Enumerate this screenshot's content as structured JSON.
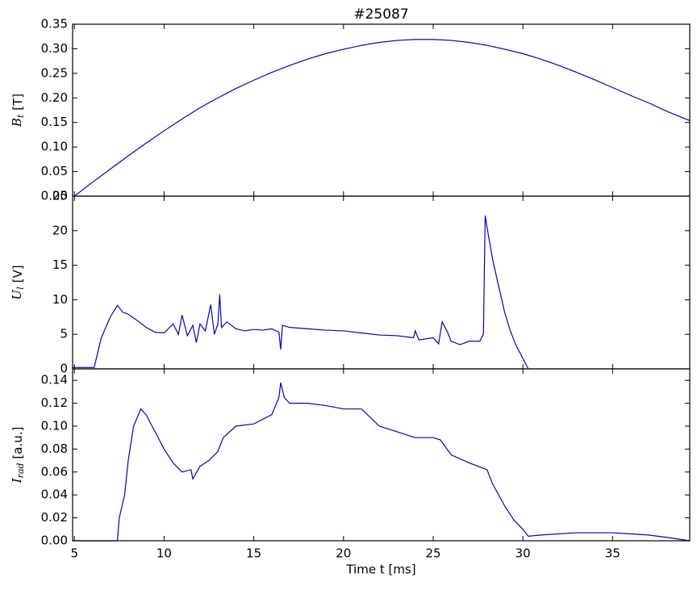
{
  "chart_data": [
    {
      "type": "line",
      "title": "#25087",
      "ylabel": {
        "symbol": "B",
        "sub": "t",
        "unit": "[T]"
      },
      "color": "#0000cc",
      "xlim": [
        4.9,
        39.3
      ],
      "ylim": [
        0,
        0.35
      ],
      "yticks": [
        {
          "value": 0,
          "label": "0.00"
        },
        {
          "value": 0.05,
          "label": "0.05"
        },
        {
          "value": 0.1,
          "label": "0.10"
        },
        {
          "value": 0.15,
          "label": "0.15"
        },
        {
          "value": 0.2,
          "label": "0.20"
        },
        {
          "value": 0.25,
          "label": "0.25"
        },
        {
          "value": 0.3,
          "label": "0.30"
        },
        {
          "value": 0.35,
          "label": "0.35"
        }
      ],
      "x": [
        5,
        6,
        7,
        8,
        9,
        10,
        11,
        12,
        13,
        14,
        15,
        16,
        17,
        18,
        19,
        20,
        21,
        22,
        23,
        24,
        25,
        26,
        27,
        28,
        29,
        30,
        31,
        32,
        33,
        34,
        35,
        36,
        37,
        38,
        39,
        39.3
      ],
      "values": [
        0.0,
        0.028,
        0.055,
        0.082,
        0.108,
        0.133,
        0.157,
        0.18,
        0.2,
        0.219,
        0.236,
        0.252,
        0.266,
        0.279,
        0.29,
        0.299,
        0.307,
        0.313,
        0.317,
        0.319,
        0.319,
        0.317,
        0.313,
        0.307,
        0.299,
        0.29,
        0.279,
        0.266,
        0.252,
        0.237,
        0.221,
        0.205,
        0.19,
        0.173,
        0.158,
        0.154
      ]
    },
    {
      "type": "line",
      "ylabel": {
        "symbol": "U",
        "sub": "l",
        "unit": "[V]"
      },
      "color": "#0000cc",
      "xlim": [
        4.9,
        39.3
      ],
      "ylim": [
        0,
        25
      ],
      "yticks": [
        0,
        5,
        10,
        15,
        20,
        25
      ],
      "x": [
        4.9,
        6.1,
        6.5,
        7.0,
        7.4,
        7.7,
        8.0,
        8.5,
        9.0,
        9.5,
        10.0,
        10.5,
        10.8,
        11.0,
        11.3,
        11.6,
        11.8,
        12.0,
        12.3,
        12.6,
        12.8,
        13.0,
        13.1,
        13.2,
        13.5,
        14.0,
        14.5,
        15.0,
        15.5,
        16.0,
        16.4,
        16.5,
        16.6,
        17.0,
        18.0,
        19.0,
        20.0,
        21.0,
        22.0,
        23.0,
        23.9,
        24.0,
        24.2,
        25.0,
        25.3,
        25.5,
        25.8,
        26.0,
        26.5,
        27.0,
        27.6,
        27.8,
        27.85,
        27.9,
        28.0,
        28.3,
        28.6,
        29.0,
        29.3,
        29.6,
        30.0,
        30.3
      ],
      "values": [
        0.2,
        0.2,
        4.5,
        7.5,
        9.2,
        8.2,
        7.9,
        7.0,
        6.0,
        5.3,
        5.2,
        6.5,
        5.0,
        7.8,
        4.8,
        6.3,
        3.8,
        6.5,
        5.5,
        9.3,
        5.0,
        6.5,
        10.8,
        6.0,
        6.8,
        5.8,
        5.5,
        5.7,
        5.6,
        5.8,
        5.3,
        2.8,
        6.3,
        6.0,
        5.8,
        5.6,
        5.5,
        5.2,
        4.9,
        4.8,
        4.5,
        5.5,
        4.2,
        4.5,
        3.6,
        6.8,
        5.3,
        4.0,
        3.5,
        4.0,
        4.0,
        5.0,
        14.0,
        22.2,
        20.5,
        16.0,
        12.5,
        8.0,
        5.5,
        3.5,
        1.5,
        0.0
      ]
    },
    {
      "type": "line",
      "ylabel": {
        "symbol": "I",
        "sub": "rad",
        "unit": "[a.u.]"
      },
      "xlabel": "Time t [ms]",
      "color": "#0000cc",
      "xlim": [
        4.9,
        39.3
      ],
      "ylim": [
        0,
        0.15
      ],
      "xticks": [
        5,
        10,
        15,
        20,
        25,
        30,
        35
      ],
      "yticks": [
        {
          "value": 0,
          "label": "0.00"
        },
        {
          "value": 0.02,
          "label": "0.02"
        },
        {
          "value": 0.04,
          "label": "0.04"
        },
        {
          "value": 0.06,
          "label": "0.06"
        },
        {
          "value": 0.08,
          "label": "0.08"
        },
        {
          "value": 0.1,
          "label": "0.10"
        },
        {
          "value": 0.12,
          "label": "0.12"
        },
        {
          "value": 0.14,
          "label": "0.14"
        }
      ],
      "x": [
        4.9,
        7.4,
        7.5,
        7.8,
        8.0,
        8.3,
        8.7,
        9.0,
        9.5,
        10.0,
        10.5,
        11.0,
        11.5,
        11.6,
        12.0,
        12.5,
        13.0,
        13.3,
        14.0,
        15.0,
        16.0,
        16.4,
        16.5,
        16.7,
        17.0,
        18.0,
        19.0,
        20.0,
        21.0,
        22.0,
        23.0,
        24.0,
        25.0,
        25.4,
        26.0,
        27.0,
        28.0,
        28.3,
        29.0,
        29.5,
        30.0,
        30.3,
        31.0,
        33.0,
        35.0,
        37.0,
        38.0,
        39.3
      ],
      "values": [
        0.0,
        0.0,
        0.02,
        0.04,
        0.07,
        0.1,
        0.115,
        0.11,
        0.095,
        0.08,
        0.068,
        0.06,
        0.062,
        0.054,
        0.065,
        0.07,
        0.078,
        0.09,
        0.1,
        0.102,
        0.11,
        0.125,
        0.138,
        0.125,
        0.12,
        0.12,
        0.118,
        0.115,
        0.115,
        0.1,
        0.095,
        0.09,
        0.09,
        0.088,
        0.075,
        0.068,
        0.062,
        0.05,
        0.03,
        0.018,
        0.01,
        0.004,
        0.005,
        0.007,
        0.007,
        0.005,
        0.003,
        0.0
      ]
    }
  ]
}
